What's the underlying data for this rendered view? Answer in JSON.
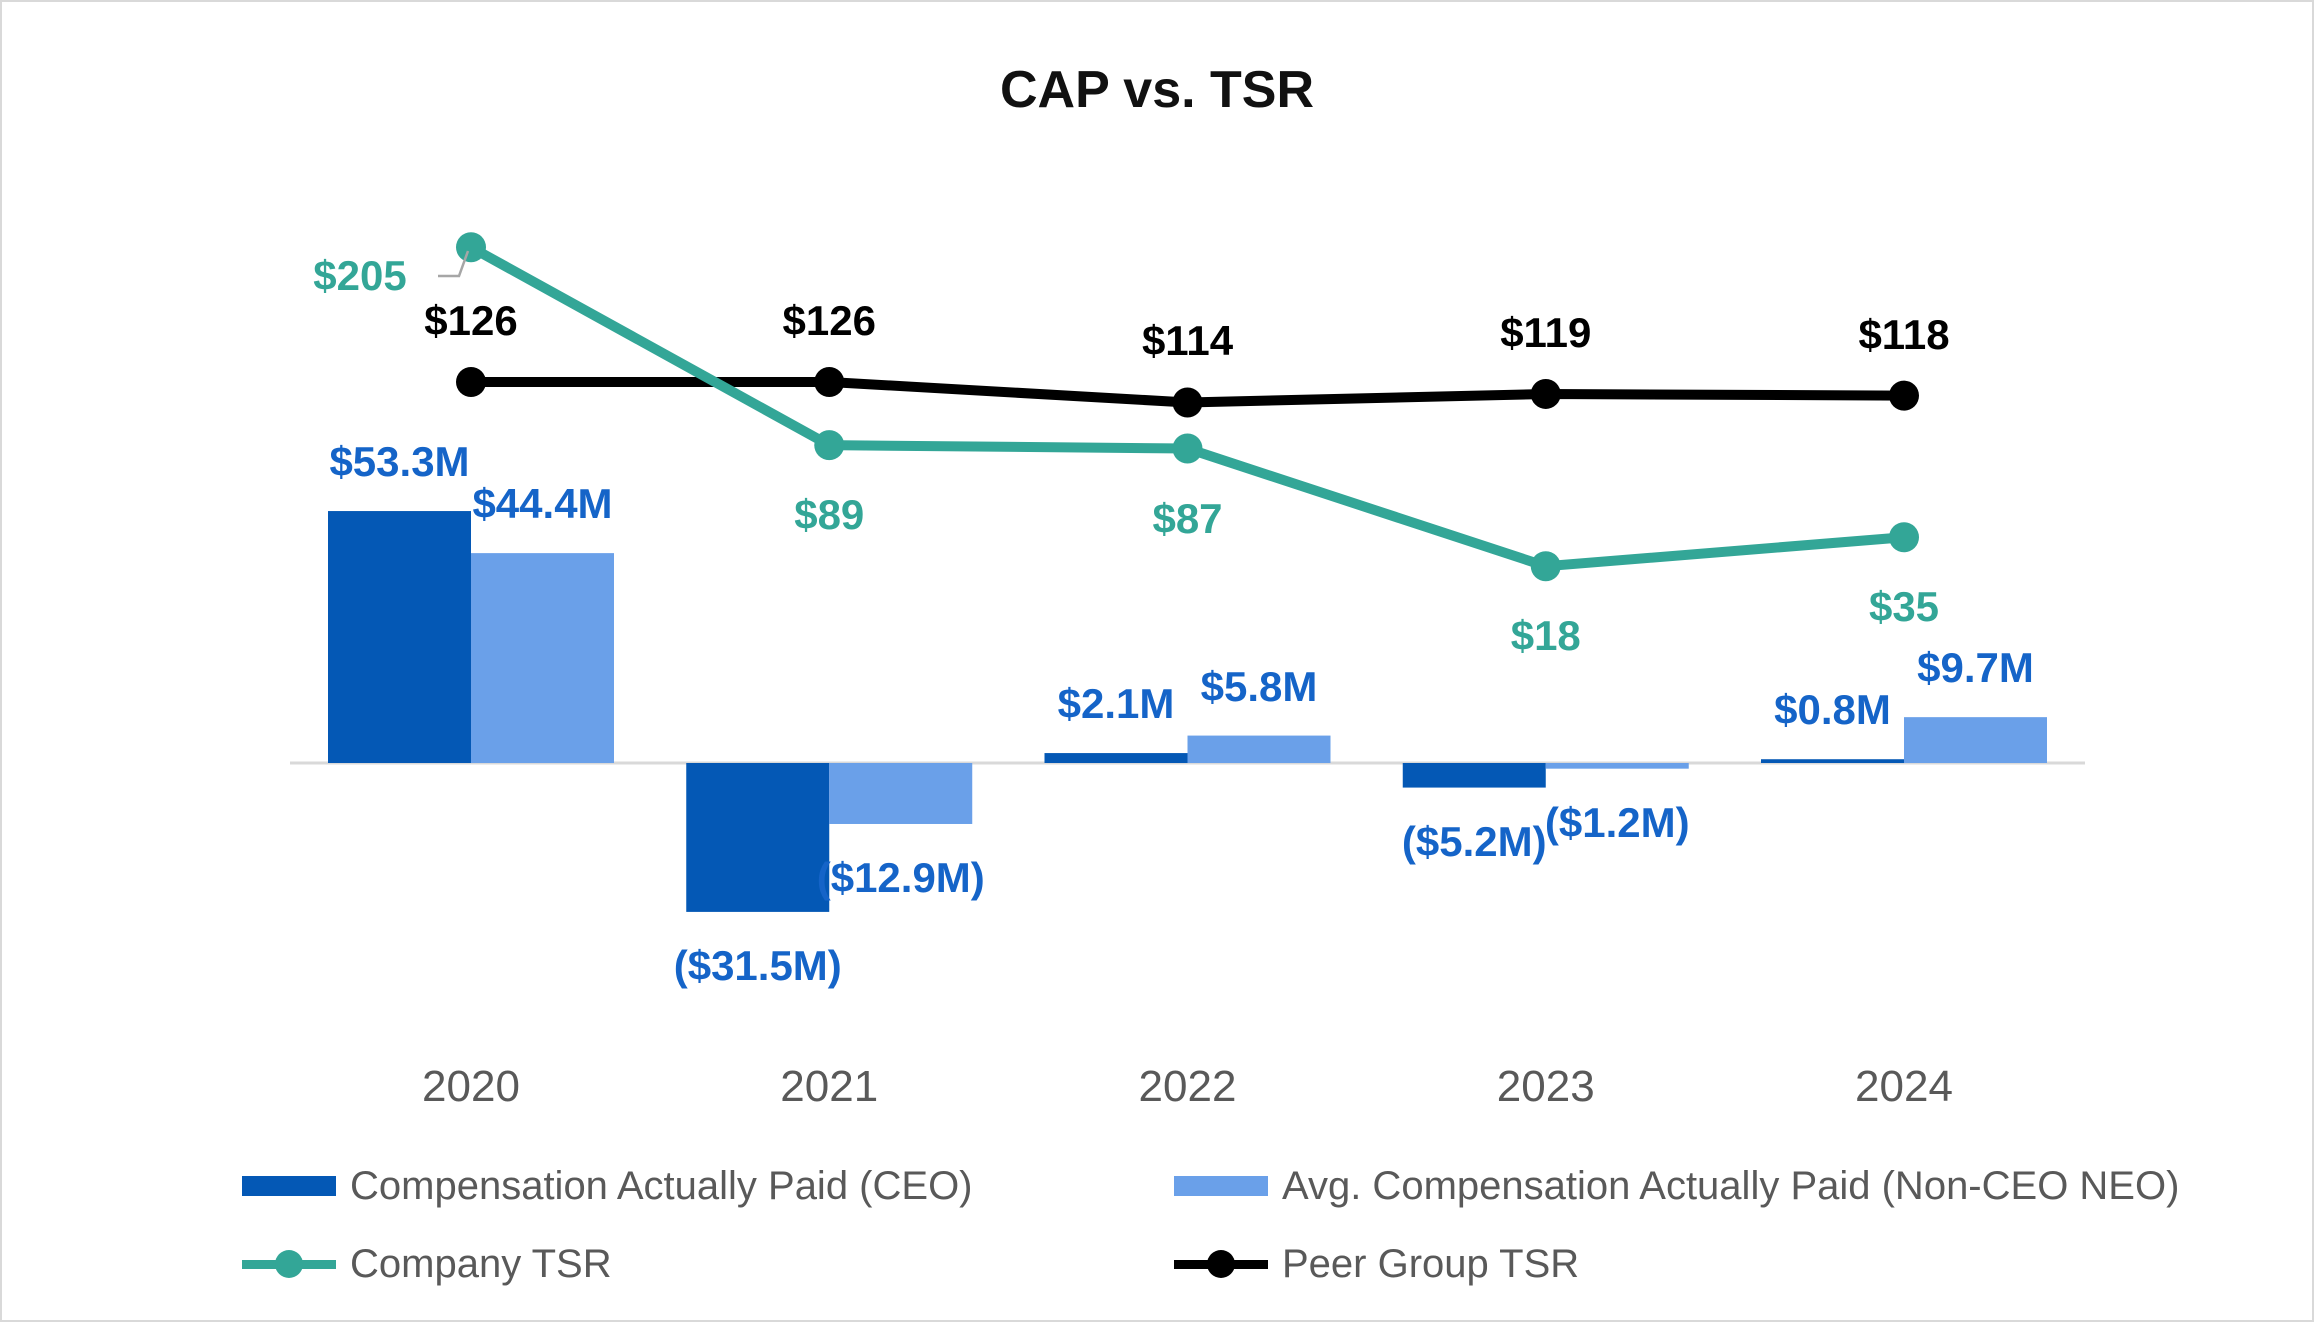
{
  "title": "CAP vs. TSR",
  "colors": {
    "ceo_bar": "#0458B5",
    "neo_bar": "#6AA0E9",
    "bar_label_text": "#1564C8",
    "company_tsr": "#33A697",
    "peer_tsr": "#000000",
    "axis_text": "#595959",
    "axis_line": "#D9D9D9",
    "leader_line": "#A6A6A6"
  },
  "chart_data": {
    "type": "combo (bar + line)",
    "categories": [
      "2020",
      "2021",
      "2022",
      "2023",
      "2024"
    ],
    "series": [
      {
        "name": "Compensation Actually Paid (CEO)",
        "type": "bar",
        "values": [
          53.3,
          -31.5,
          2.1,
          -5.2,
          0.8
        ],
        "labels": [
          "$53.3M",
          "($31.5M)",
          "$2.1M",
          "($5.2M)",
          "$0.8M"
        ],
        "color": "#0458B5"
      },
      {
        "name": "Avg. Compensation Actually Paid (Non-CEO NEO)",
        "type": "bar",
        "values": [
          44.4,
          -12.9,
          5.8,
          -1.2,
          9.7
        ],
        "labels": [
          "$44.4M",
          "($12.9M)",
          "$5.8M",
          "($1.2M)",
          "$9.7M"
        ],
        "color": "#6AA0E9"
      },
      {
        "name": "Company TSR",
        "type": "line",
        "values": [
          205,
          89,
          87,
          18,
          35
        ],
        "labels": [
          "$205",
          "$89",
          "$87",
          "$18",
          "$35"
        ],
        "color": "#33A697"
      },
      {
        "name": "Peer Group TSR",
        "type": "line",
        "values": [
          126,
          126,
          114,
          119,
          118
        ],
        "labels": [
          "$126",
          "$126",
          "$114",
          "$119",
          "$118"
        ],
        "color": "#000000"
      }
    ],
    "grid": "off",
    "legend_position": "bottom",
    "bar_axis_baseline": 0
  },
  "legend": {
    "items": [
      {
        "label": "Compensation Actually Paid (CEO)",
        "marker": "bar",
        "color": "#0458B5"
      },
      {
        "label": "Avg. Compensation Actually Paid (Non-CEO NEO)",
        "marker": "bar",
        "color": "#6AA0E9"
      },
      {
        "label": "Company TSR",
        "marker": "line-dot",
        "color": "#33A697"
      },
      {
        "label": "Peer Group TSR",
        "marker": "line-dot",
        "color": "#000000"
      }
    ]
  }
}
